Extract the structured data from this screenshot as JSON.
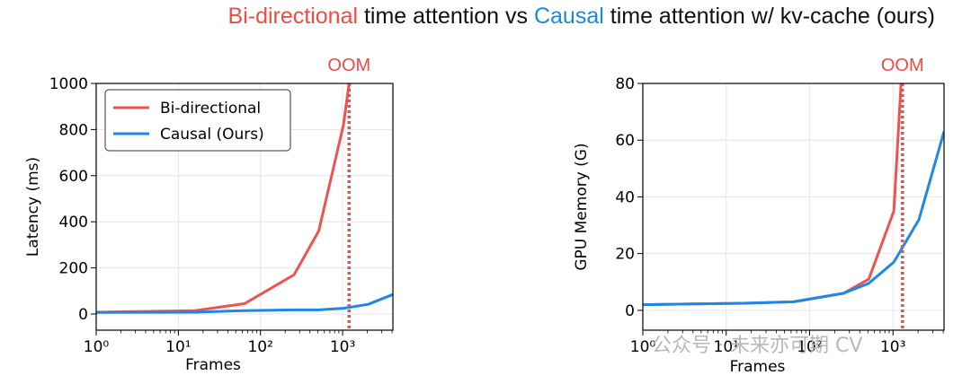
{
  "title": {
    "part1": "Bi-directional",
    "part2": " time attention vs ",
    "part3": "Causal",
    "part4": " time attention w/ kv-cache (ours)"
  },
  "colors": {
    "bidirectional": "#ef5350",
    "causal": "#1e88e5",
    "oom": "#ef4b42"
  },
  "watermark": "公众号 · 未来亦可期 CV",
  "chart_data": [
    {
      "type": "line",
      "xlabel": "Frames",
      "ylabel": "Latency (ms)",
      "xscale": "log",
      "xlim": [
        1,
        4096
      ],
      "ylim": [
        -70,
        1000
      ],
      "yticks": [
        0,
        200,
        400,
        600,
        800,
        1000
      ],
      "xticks": [
        1,
        10,
        100,
        1000
      ],
      "grid": true,
      "legend": "top-left",
      "oom_x": 1200,
      "oom_label": "OOM",
      "series": [
        {
          "name": "Bi-directional",
          "color": "#ef5350",
          "x": [
            1,
            16,
            64,
            256,
            512,
            1024,
            1200
          ],
          "y": [
            8,
            15,
            45,
            170,
            360,
            820,
            1000
          ]
        },
        {
          "name": "Causal (Ours)",
          "color": "#1e88e5",
          "x": [
            1,
            16,
            64,
            256,
            512,
            1024,
            2048,
            4096
          ],
          "y": [
            7,
            8,
            15,
            18,
            18,
            25,
            42,
            85
          ]
        }
      ]
    },
    {
      "type": "line",
      "xlabel": "Frames",
      "ylabel": "GPU Memory (G)",
      "xscale": "log",
      "xlim": [
        1,
        4096
      ],
      "ylim": [
        -7,
        80
      ],
      "yticks": [
        0,
        20,
        40,
        60,
        80
      ],
      "xticks": [
        1,
        10,
        100,
        1000
      ],
      "grid": true,
      "legend": "none",
      "oom_x": 1300,
      "oom_label": "OOM",
      "series": [
        {
          "name": "Bi-directional",
          "color": "#ef5350",
          "x": [
            1,
            16,
            64,
            256,
            512,
            1024,
            1250
          ],
          "y": [
            2,
            2.5,
            3,
            6,
            11,
            35,
            80
          ]
        },
        {
          "name": "Causal (Ours)",
          "color": "#1e88e5",
          "x": [
            1,
            16,
            64,
            256,
            512,
            1024,
            2048,
            4096
          ],
          "y": [
            2,
            2.5,
            3,
            6,
            9.5,
            17,
            32,
            63
          ]
        }
      ]
    }
  ]
}
